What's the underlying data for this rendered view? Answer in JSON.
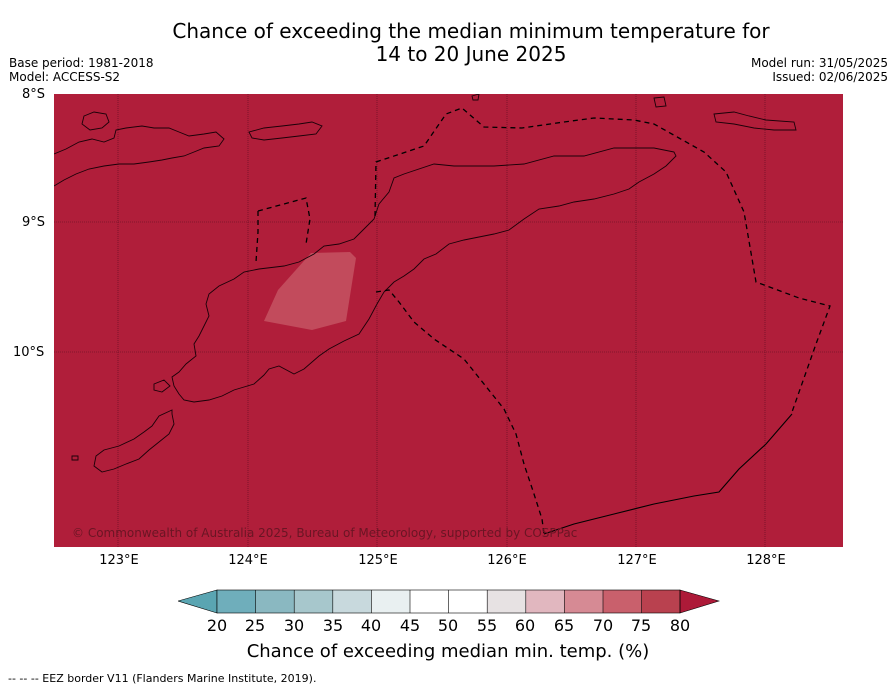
{
  "title": {
    "line1": "Chance of exceeding the median minimum temperature for",
    "line2": "14 to 20 June 2025"
  },
  "meta_left": {
    "base_period": "Base period: 1981-2018",
    "model": "Model: ACCESS-S2"
  },
  "meta_right": {
    "model_run": "Model run: 31/05/2025",
    "issued": "Issued: 02/06/2025"
  },
  "map": {
    "latitude_labels": [
      "8°S",
      "9°S",
      "10°S"
    ],
    "longitude_labels": [
      "123°E",
      "124°E",
      "125°E",
      "126°E",
      "127°E",
      "128°E"
    ],
    "copyright": "© Commonwealth of Australia 2025, Bureau of Meteorology, supported by COSPPac",
    "colors": {
      "background": "#b01e3a",
      "patch": "#c24b5c",
      "land_outline": "#1a0008",
      "grid": "#5a0e1e"
    }
  },
  "colorbar": {
    "ticks": [
      "20",
      "25",
      "30",
      "35",
      "40",
      "45",
      "50",
      "55",
      "60",
      "65",
      "70",
      "75",
      "80"
    ],
    "label": "Chance of exceeding median min. temp. (%)",
    "colors": [
      "#5aa5b2",
      "#6faebb",
      "#8ab8c1",
      "#a7c7cc",
      "#c8d9dd",
      "#e9f0f1",
      "#ffffff",
      "#ffffff",
      "#e7e2e3",
      "#e1b7bf",
      "#d68a94",
      "#c9606c",
      "#b9414f",
      "#ad1a38"
    ]
  },
  "footer": "--  --  -- EEZ border V11 (Flanders Marine Institute, 2019)."
}
